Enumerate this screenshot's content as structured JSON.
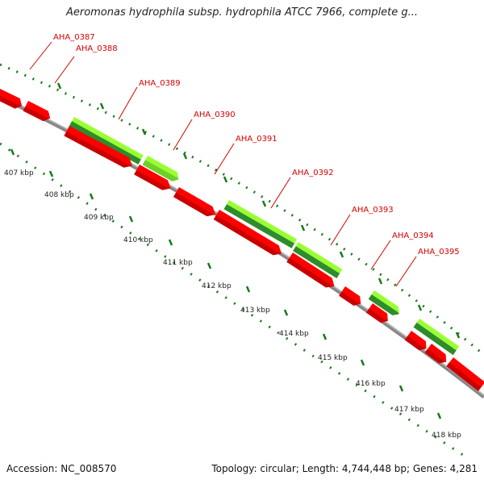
{
  "title": "Aeromonas hydrophila subsp. hydrophila ATCC 7966, complete g...",
  "accession": "Accession: NC_008570",
  "summary": "Topology: circular; Length: 4,744,448 bp; Genes: 4,281",
  "colors": {
    "gene_red": "#ff0000",
    "gene_red_dark": "#c80000",
    "green_light": "#99ff33",
    "green_dark": "#2e8b2e",
    "backbone": "#888888",
    "tick_green": "#1a7a1a",
    "label_red": "#d40000"
  },
  "scale_labels": [
    "407 kbp",
    "408 kbp",
    "409 kbp",
    "410 kbp",
    "411 kbp",
    "412 kbp",
    "413 kbp",
    "414 kbp",
    "415 kbp",
    "416 kbp",
    "417 kbp",
    "418 kbp"
  ],
  "genes": [
    {
      "label": "AHA_0387"
    },
    {
      "label": "AHA_0388"
    },
    {
      "label": "AHA_0389"
    },
    {
      "label": "AHA_0390"
    },
    {
      "label": "AHA_0391"
    },
    {
      "label": "AHA_0392"
    },
    {
      "label": "AHA_0393"
    },
    {
      "label": "AHA_0394"
    },
    {
      "label": "AHA_0395"
    }
  ]
}
